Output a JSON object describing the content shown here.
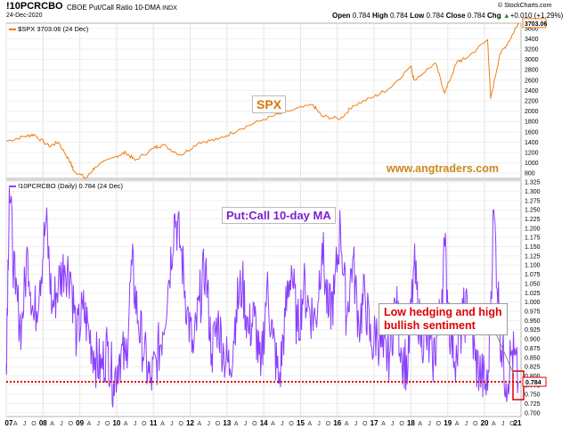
{
  "header": {
    "symbol": "!10PCRCBO",
    "description": "CBOE Put/Call Ratio 10-DMA",
    "exchange": "INDX",
    "date": "24-Dec-2020",
    "open_label": "Open",
    "open": "0.784",
    "high_label": "High",
    "high": "0.784",
    "low_label": "Low",
    "low": "0.784",
    "close_label": "Close",
    "close": "0.784",
    "chg_label": "Chg",
    "chg": "+0.010 (+1.29%)",
    "chg_arrow": "▲",
    "credit": "© StockCharts.com"
  },
  "top_panel": {
    "legend": "$SPX 3703.06 (24 Dec)",
    "label": "SPX",
    "watermark": "www.angtraders.com",
    "last_value": "3703.06",
    "y_ticks": [
      "3600",
      "3400",
      "3200",
      "3000",
      "2800",
      "2600",
      "2400",
      "2200",
      "2000",
      "1800",
      "1600",
      "1400",
      "1200",
      "1000",
      "800"
    ]
  },
  "bottom_panel": {
    "legend": "!10PCRCBO (Daily) 0.784 (24 Dec)",
    "label": "Put:Call 10-day MA",
    "callout": [
      "Low hedging and high",
      "bullish sentiment"
    ],
    "last_value": "0.784",
    "reference_level": 0.784,
    "y_ticks": [
      "1.325",
      "1.300",
      "1.275",
      "1.250",
      "1.225",
      "1.200",
      "1.175",
      "1.150",
      "1.125",
      "1.100",
      "1.075",
      "1.050",
      "1.025",
      "1.000",
      "0.975",
      "0.950",
      "0.925",
      "0.900",
      "0.875",
      "0.850",
      "0.825",
      "0.800",
      "0.775",
      "0.750",
      "0.725",
      "0.700"
    ]
  },
  "x_axis": {
    "year_labels": [
      "07",
      "08",
      "09",
      "10",
      "11",
      "12",
      "13",
      "14",
      "15",
      "16",
      "17",
      "18",
      "19",
      "20",
      "21"
    ],
    "month_labels": [
      "A",
      "J",
      "O"
    ]
  },
  "colors": {
    "spx": "#f07f12",
    "pcr": "#8a3ffc",
    "reference": "#e00000",
    "spx_label": "#d9760f",
    "watermark": "#c98a1a",
    "pcr_label": "#7a1fd0"
  },
  "chart_data": [
    {
      "type": "line",
      "title": "$SPX 3703.06 (24 Dec)",
      "ylim": [
        700,
        3700
      ],
      "x": [
        "2007-01",
        "2007-07",
        "2007-10",
        "2008-03",
        "2008-06",
        "2008-10",
        "2008-11",
        "2009-03",
        "2009-06",
        "2010-01",
        "2010-04",
        "2010-07",
        "2011-01",
        "2011-04",
        "2011-10",
        "2012-04",
        "2012-10",
        "2013-05",
        "2014-01",
        "2014-09",
        "2015-05",
        "2015-08",
        "2016-02",
        "2016-06",
        "2017-01",
        "2017-06",
        "2018-01",
        "2018-02",
        "2018-09",
        "2018-12",
        "2019-04",
        "2019-07",
        "2020-02",
        "2020-03",
        "2020-06",
        "2020-09",
        "2020-12"
      ],
      "series": [
        {
          "name": "$SPX",
          "values": [
            1420,
            1510,
            1550,
            1320,
            1400,
            1000,
            850,
            700,
            920,
            1130,
            1200,
            1050,
            1280,
            1350,
            1150,
            1400,
            1450,
            1650,
            1840,
            2000,
            2120,
            1900,
            1850,
            2100,
            2280,
            2440,
            2870,
            2600,
            2930,
            2350,
            2950,
            3020,
            3380,
            2240,
            3100,
            3350,
            3703
          ]
        }
      ]
    },
    {
      "type": "line",
      "title": "!10PCRCBO (Daily) 0.784 (24 Dec)",
      "ylim": [
        0.69,
        1.33
      ],
      "x": [
        "2007-01",
        "2007-02",
        "2007-04",
        "2007-06",
        "2007-08",
        "2007-10",
        "2007-12",
        "2008-02",
        "2008-04",
        "2008-06",
        "2008-08",
        "2008-10",
        "2008-12",
        "2009-02",
        "2009-04",
        "2009-06",
        "2009-08",
        "2009-10",
        "2009-12",
        "2010-02",
        "2010-04",
        "2010-06",
        "2010-08",
        "2010-10",
        "2010-12",
        "2011-02",
        "2011-04",
        "2011-06",
        "2011-08",
        "2011-10",
        "2011-12",
        "2012-02",
        "2012-04",
        "2012-06",
        "2012-08",
        "2012-10",
        "2012-12",
        "2013-02",
        "2013-04",
        "2013-06",
        "2013-08",
        "2013-10",
        "2013-12",
        "2014-02",
        "2014-04",
        "2014-06",
        "2014-08",
        "2014-10",
        "2014-12",
        "2015-02",
        "2015-04",
        "2015-06",
        "2015-08",
        "2015-10",
        "2015-12",
        "2016-02",
        "2016-04",
        "2016-06",
        "2016-08",
        "2016-10",
        "2016-12",
        "2017-02",
        "2017-04",
        "2017-06",
        "2017-08",
        "2017-10",
        "2017-12",
        "2018-02",
        "2018-04",
        "2018-06",
        "2018-08",
        "2018-10",
        "2018-12",
        "2019-02",
        "2019-04",
        "2019-06",
        "2019-08",
        "2019-10",
        "2019-12",
        "2020-02",
        "2020-04",
        "2020-06",
        "2020-08",
        "2020-10",
        "2020-12"
      ],
      "series": [
        {
          "name": "!10PCRCBO",
          "values": [
            0.83,
            1.31,
            1.02,
            0.93,
            1.14,
            0.95,
            1.06,
            1.22,
            0.98,
            1.05,
            1.1,
            1.08,
            0.9,
            0.98,
            0.92,
            0.85,
            0.82,
            0.88,
            0.78,
            0.86,
            0.84,
            1.1,
            0.95,
            0.86,
            0.78,
            0.84,
            0.92,
            1.06,
            1.24,
            1.14,
            0.98,
            0.86,
            1.0,
            1.1,
            0.86,
            0.95,
            0.86,
            0.82,
            0.98,
            1.05,
            0.92,
            0.96,
            0.8,
            1.04,
            0.9,
            0.78,
            0.96,
            1.1,
            0.92,
            1.04,
            0.98,
            0.95,
            1.16,
            0.96,
            1.02,
            1.21,
            0.96,
            1.12,
            0.94,
            1.02,
            0.88,
            0.92,
            0.85,
            0.86,
            1.0,
            0.86,
            0.82,
            1.1,
            0.92,
            0.9,
            0.84,
            0.92,
            1.15,
            0.9,
            0.85,
            0.96,
            0.98,
            0.84,
            0.8,
            0.76,
            1.25,
            0.93,
            0.78,
            0.87,
            0.784
          ]
        }
      ]
    }
  ]
}
